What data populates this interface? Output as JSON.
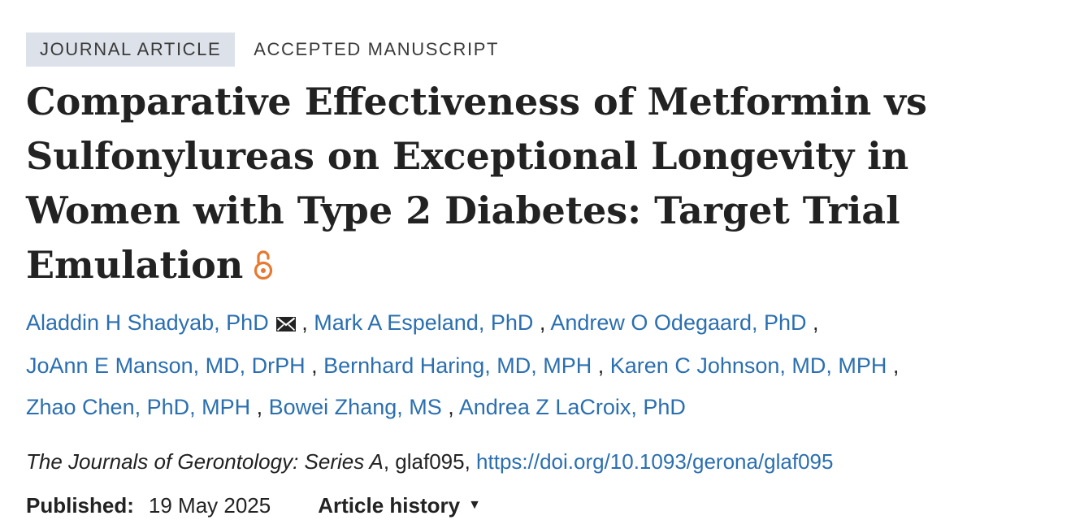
{
  "badges": {
    "type": "JOURNAL ARTICLE",
    "status": "ACCEPTED MANUSCRIPT"
  },
  "article": {
    "title": "Comparative Effectiveness of Metformin vs Sulfonylureas on Exceptional Longevity in Women with Type 2 Diabetes: Target Trial Emulation",
    "open_access_icon": "open-access-lock-icon"
  },
  "authors": [
    {
      "name": "Aladdin H Shadyab, PhD",
      "corresponding": true
    },
    {
      "name": "Mark A Espeland, PhD",
      "corresponding": false
    },
    {
      "name": "Andrew O Odegaard, PhD",
      "corresponding": false
    },
    {
      "name": "JoAnn E Manson, MD, DrPH",
      "corresponding": false
    },
    {
      "name": "Bernhard Haring, MD, MPH",
      "corresponding": false
    },
    {
      "name": "Karen C Johnson, MD, MPH",
      "corresponding": false
    },
    {
      "name": "Zhao Chen, PhD, MPH",
      "corresponding": false
    },
    {
      "name": "Bowei Zhang, MS",
      "corresponding": false
    },
    {
      "name": "Andrea Z LaCroix, PhD",
      "corresponding": false
    }
  ],
  "author_separator": " , ",
  "citation": {
    "journal": "The Journals of Gerontology: Series A",
    "article_id": ", glaf095, ",
    "doi": "https://doi.org/10.1093/gerona/glaf095"
  },
  "published": {
    "label": "Published:",
    "date": "19 May 2025"
  },
  "history": {
    "label": "Article history",
    "caret": "▼"
  },
  "colors": {
    "link": "#2b6fb0",
    "badge_bg": "#dde2ea",
    "text": "#222222",
    "open_access": "#e8792e"
  }
}
